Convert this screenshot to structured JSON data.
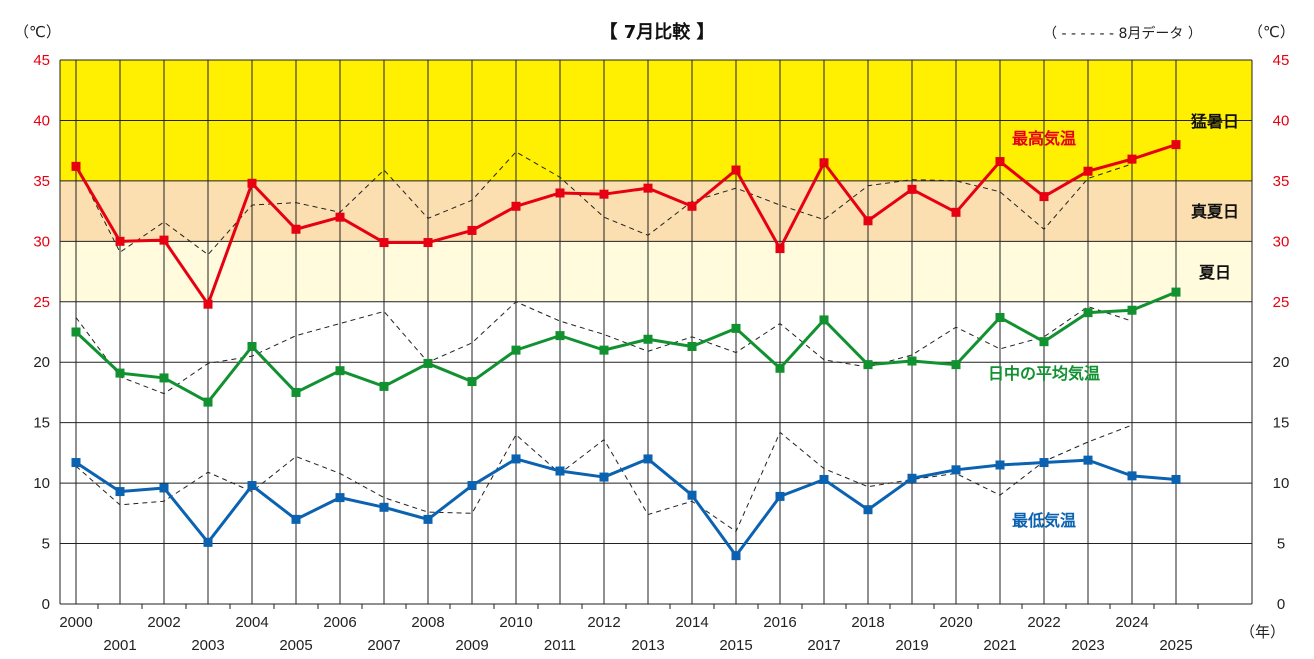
{
  "title": "【 7月比較 】",
  "legend_note": "（  - - - - - -  8月データ ）",
  "y_unit": "（℃）",
  "x_unit": "（年）",
  "bands": [
    {
      "label": "猛暑日",
      "from": 35,
      "to": 45,
      "color": "#ffef00"
    },
    {
      "label": "真夏日",
      "from": 30,
      "to": 35,
      "color": "#fbdfb0"
    },
    {
      "label": "夏日",
      "from": 25,
      "to": 30,
      "color": "#fffbdc"
    }
  ],
  "chart_data": {
    "type": "line",
    "x": [
      2000,
      2001,
      2002,
      2003,
      2004,
      2005,
      2006,
      2007,
      2008,
      2009,
      2010,
      2011,
      2012,
      2013,
      2014,
      2015,
      2016,
      2017,
      2018,
      2019,
      2020,
      2021,
      2022,
      2023,
      2024,
      2025
    ],
    "x_tick_labels": [
      "2000",
      "2001",
      "2002",
      "2003",
      "2004",
      "2005",
      "2006",
      "2007",
      "2008",
      "2009",
      "2010",
      "2011",
      "2012",
      "2013",
      "2014",
      "2015",
      "2016",
      "2017",
      "2018",
      "2019",
      "2020",
      "2021",
      "2022",
      "2023",
      "2024",
      "2025"
    ],
    "ylim": [
      0,
      45
    ],
    "y_ticks": [
      0,
      5,
      10,
      15,
      20,
      25,
      30,
      35,
      40,
      45
    ],
    "y_tick_labels": [
      "0",
      "5",
      "10",
      "15",
      "20",
      "25",
      "30",
      "35",
      "40",
      "45"
    ],
    "grid": true,
    "series": [
      {
        "name": "最高気温",
        "color": "#e60012",
        "values": [
          36.2,
          30.0,
          30.1,
          24.8,
          34.8,
          31.0,
          32.0,
          29.9,
          29.9,
          30.9,
          32.9,
          34.0,
          33.9,
          34.4,
          32.9,
          35.9,
          29.4,
          36.5,
          31.7,
          34.3,
          32.4,
          36.6,
          33.7,
          35.8,
          36.8,
          38.0
        ]
      },
      {
        "name": "日中の平均気温",
        "color": "#119130",
        "values": [
          22.5,
          19.1,
          18.7,
          16.7,
          21.3,
          17.5,
          19.3,
          18.0,
          19.9,
          18.4,
          21.0,
          22.2,
          21.0,
          21.9,
          21.3,
          22.8,
          19.5,
          23.5,
          19.8,
          20.1,
          19.8,
          23.7,
          21.7,
          24.1,
          24.3,
          25.8
        ]
      },
      {
        "name": "最低気温",
        "color": "#0a62b0",
        "values": [
          11.7,
          9.3,
          9.6,
          5.1,
          9.8,
          7.0,
          8.8,
          8.0,
          7.0,
          9.8,
          12.0,
          11.0,
          10.5,
          12.0,
          9.0,
          4.0,
          8.9,
          10.3,
          7.8,
          10.4,
          11.1,
          11.5,
          11.7,
          11.9,
          10.6,
          10.3
        ]
      }
    ],
    "august_series": [
      {
        "name": "8月 最高気温",
        "values": [
          36.3,
          29.1,
          31.6,
          28.9,
          33.0,
          33.2,
          32.4,
          35.9,
          31.9,
          33.4,
          37.4,
          35.3,
          32.0,
          30.5,
          33.3,
          34.4,
          33.0,
          31.8,
          34.6,
          35.1,
          35.0,
          34.1,
          31.0,
          35.2,
          36.4
        ]
      },
      {
        "name": "8月 日中の平均気温",
        "values": [
          23.7,
          18.8,
          17.4,
          19.9,
          20.5,
          22.2,
          23.2,
          24.2,
          20.0,
          21.6,
          25.0,
          23.4,
          22.3,
          20.9,
          22.1,
          20.8,
          23.2,
          20.2,
          19.6,
          20.6,
          22.9,
          21.1,
          22.1,
          24.6,
          23.4
        ]
      },
      {
        "name": "8月 最低気温",
        "values": [
          11.4,
          8.2,
          8.5,
          10.9,
          9.3,
          12.2,
          10.8,
          8.8,
          7.6,
          7.5,
          14.0,
          10.8,
          13.6,
          7.4,
          8.5,
          6.0,
          14.2,
          11.2,
          9.7,
          10.3,
          10.8,
          9.0,
          11.8,
          13.4,
          14.8
        ]
      }
    ]
  }
}
